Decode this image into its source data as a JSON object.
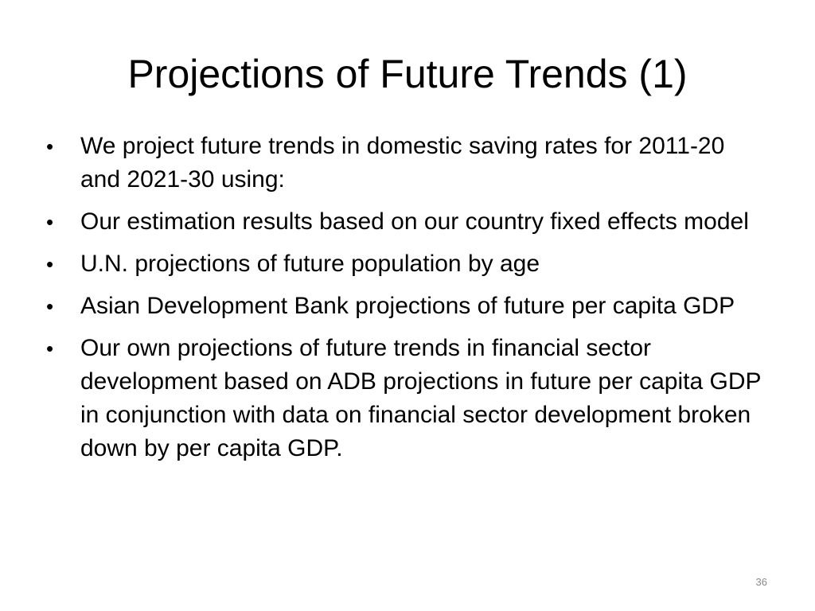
{
  "slide": {
    "title": "Projections of Future Trends (1)",
    "bullet_symbol": "•",
    "bullets": [
      "We project future trends in domestic saving rates for 2011-20 and 2021-30 using:",
      "Our estimation results based on our country fixed effects model",
      "U.N. projections of future population by age",
      "Asian Development Bank projections of future per capita GDP",
      "Our own projections of future trends in financial sector development based on ADB projections in future per capita GDP in conjunction with data on financial sector development broken down by per capita GDP."
    ],
    "page_number": "36"
  }
}
